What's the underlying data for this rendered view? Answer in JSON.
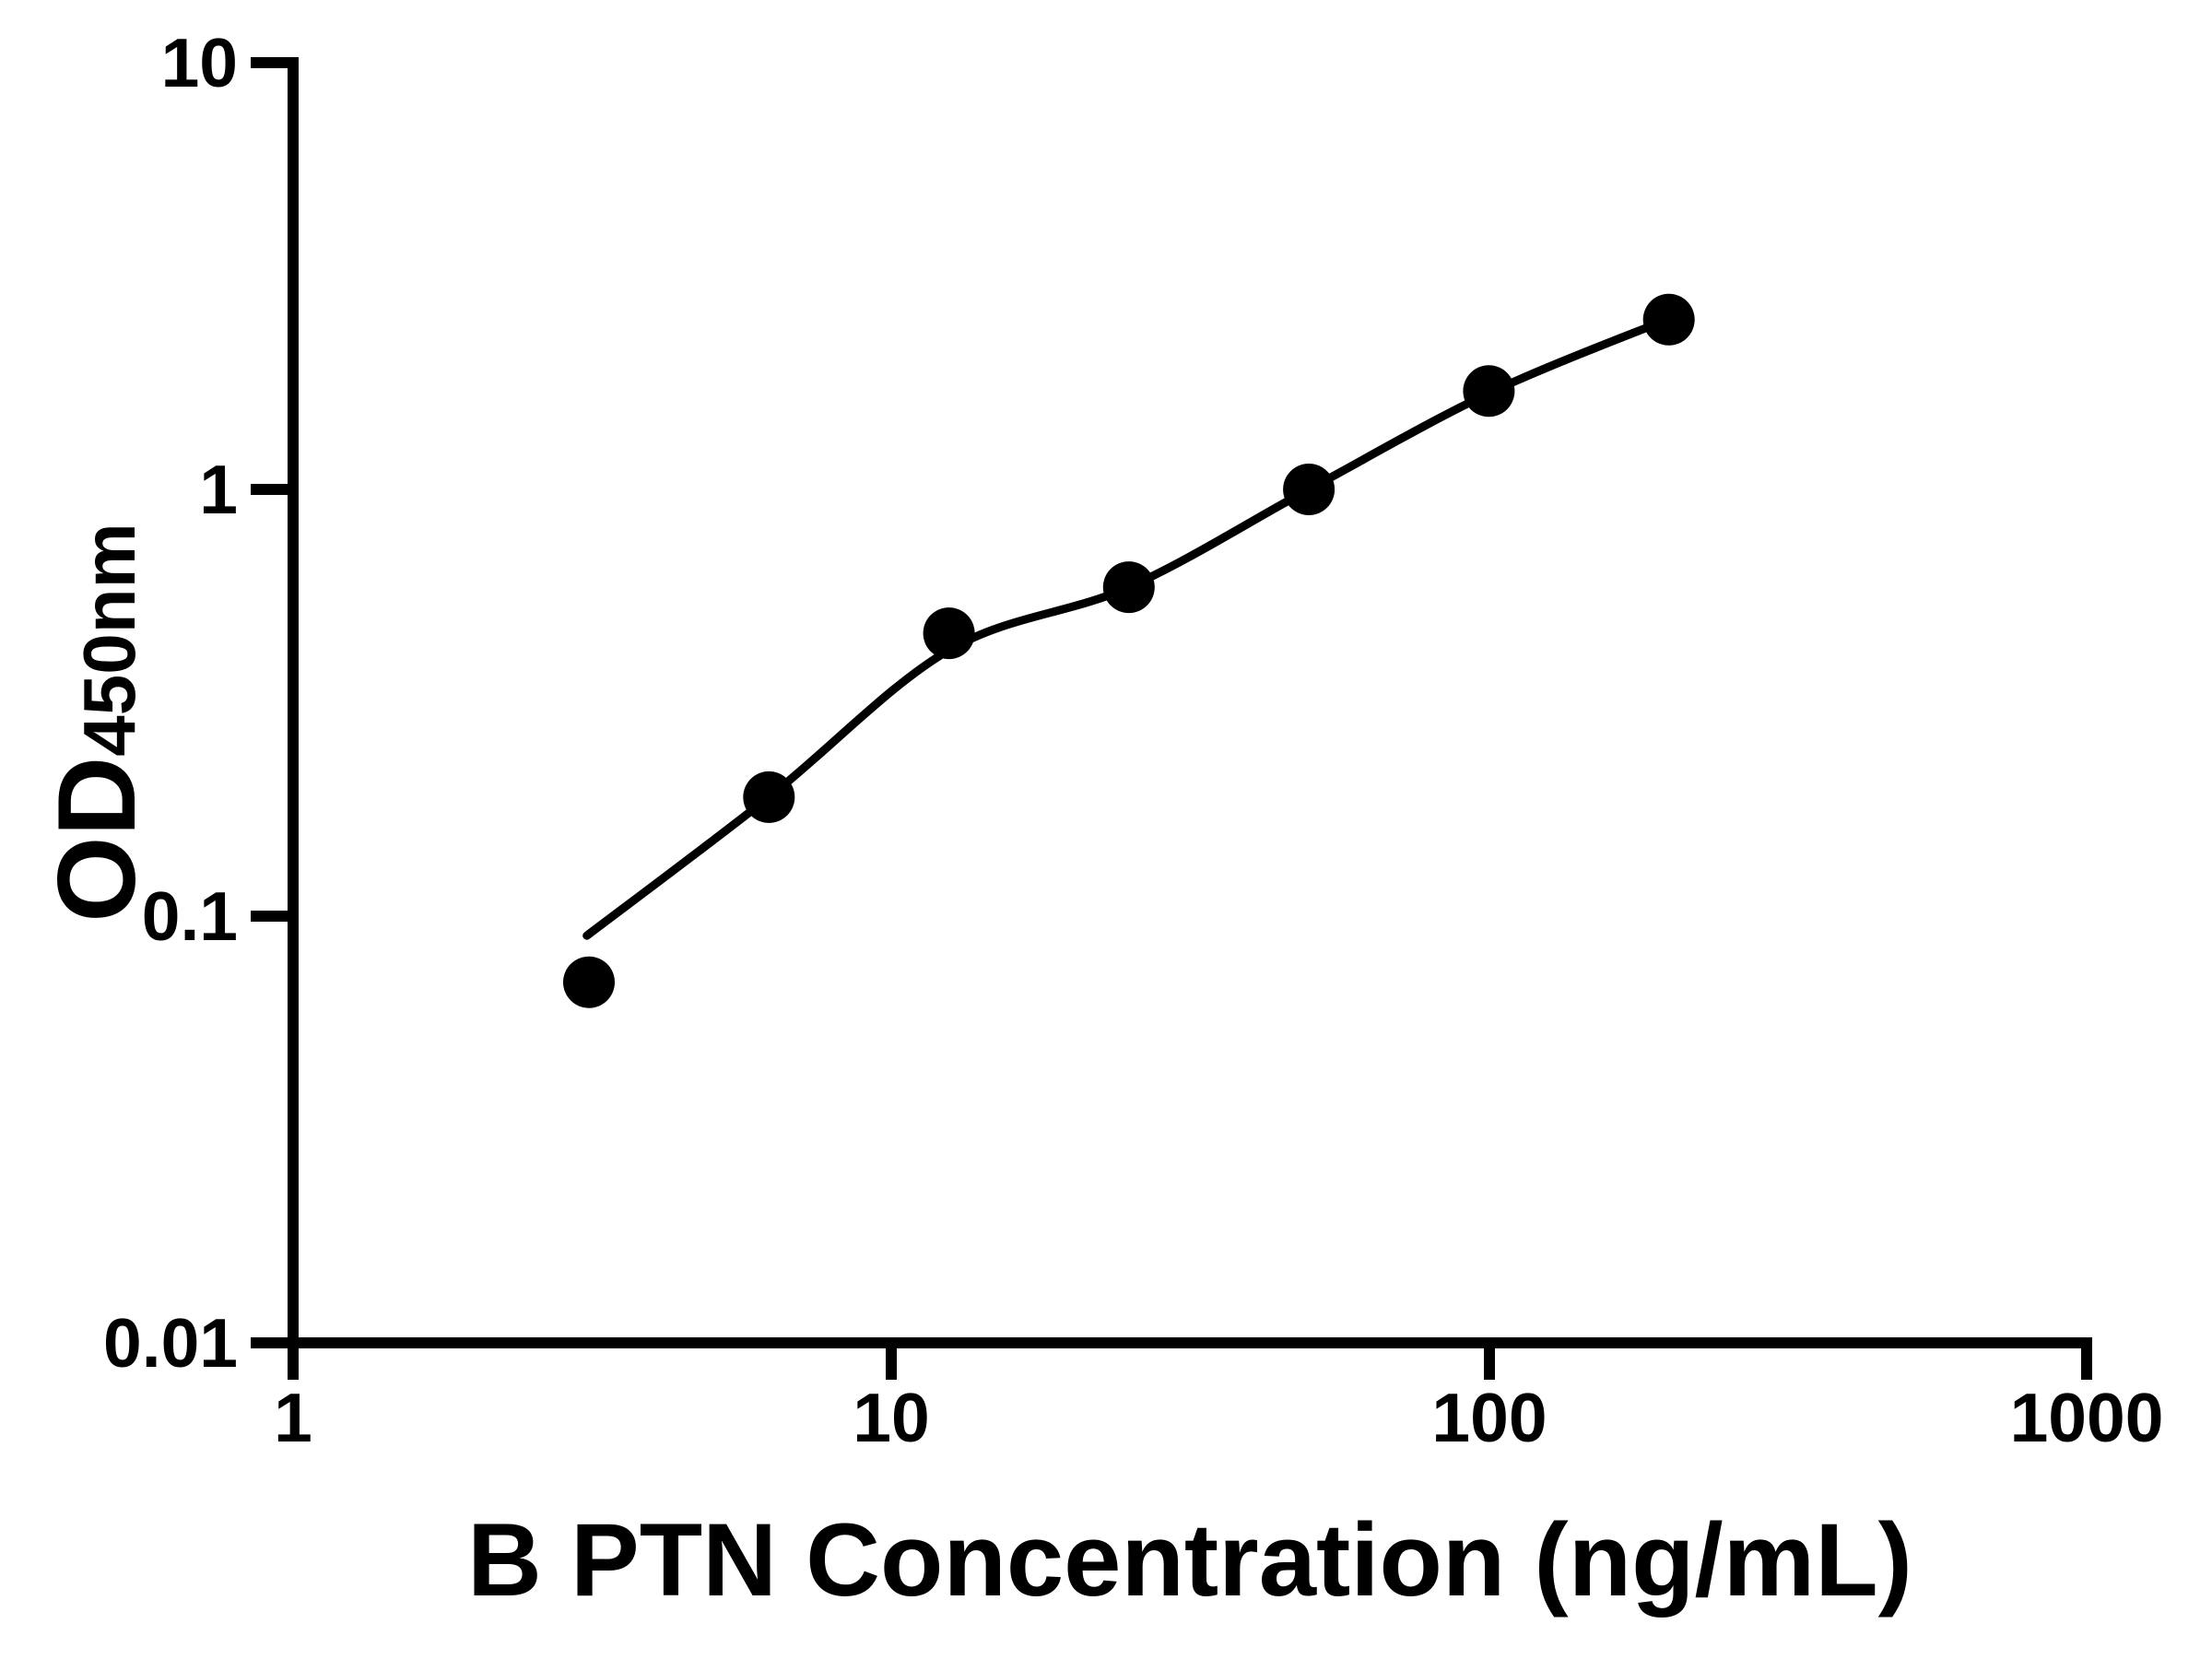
{
  "chart_data": {
    "type": "scatter",
    "title": "",
    "xlabel": "B PTN Concentration (ng/mL)",
    "ylabel": "OD450nm",
    "ylabel_base": "OD",
    "ylabel_subscript": "450nm",
    "x_scale": "log",
    "y_scale": "log",
    "xlim": [
      1,
      1000
    ],
    "ylim": [
      0.01,
      10
    ],
    "x_ticks": [
      1,
      10,
      100,
      1000
    ],
    "y_ticks": [
      10,
      1,
      0.1,
      0.01
    ],
    "x_tick_labels": [
      "1",
      "10",
      "100",
      "1000"
    ],
    "y_tick_labels": [
      "10",
      "1",
      "0.1",
      "0.01"
    ],
    "grid": false,
    "legend_position": "none",
    "series": [
      {
        "name": "standard-points",
        "type": "scatter",
        "x": [
          3.125,
          6.25,
          12.5,
          25,
          50,
          100,
          200
        ],
        "y": [
          0.07,
          0.19,
          0.46,
          0.59,
          1.0,
          1.7,
          2.5
        ]
      }
    ],
    "fit_curve": {
      "name": "fitted-standard-curve",
      "x": [
        3.1,
        6.25,
        12.5,
        25,
        50,
        100,
        200
      ],
      "y": [
        0.09,
        0.19,
        0.42,
        0.59,
        1.0,
        1.68,
        2.51
      ]
    },
    "marker": {
      "shape": "circle",
      "color": "#000000",
      "radius_px": 28
    },
    "line_color": "#000000",
    "axis_color": "#000000",
    "background": "#ffffff"
  }
}
